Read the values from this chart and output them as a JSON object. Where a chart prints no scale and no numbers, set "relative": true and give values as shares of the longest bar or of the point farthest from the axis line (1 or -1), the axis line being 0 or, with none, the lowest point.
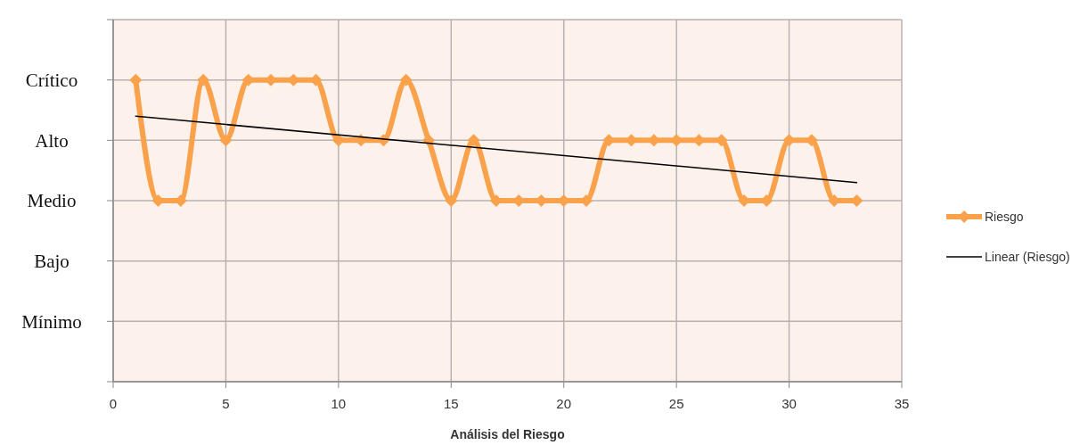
{
  "chart_data": {
    "type": "line",
    "xlabel": "Análisis del Riesgo",
    "relative": true,
    "x": [
      1,
      2,
      3,
      4,
      5,
      6,
      7,
      8,
      9,
      10,
      11,
      12,
      13,
      14,
      15,
      16,
      17,
      18,
      19,
      20,
      21,
      22,
      23,
      24,
      25,
      26,
      27,
      28,
      29,
      30,
      31,
      32,
      33
    ],
    "series": [
      {
        "name": "Riesgo",
        "color": "#f9a24b",
        "marker": "diamond",
        "values": [
          1,
          0.6,
          0.6,
          1,
          0.8,
          1,
          1,
          1,
          1,
          0.8,
          0.8,
          0.8,
          1,
          0.8,
          0.6,
          0.8,
          0.6,
          0.6,
          0.6,
          0.6,
          0.6,
          0.8,
          0.8,
          0.8,
          0.8,
          0.8,
          0.8,
          0.6,
          0.6,
          0.8,
          0.8,
          0.6,
          0.6
        ]
      },
      {
        "name": "Linear (Riesgo)",
        "type": "line",
        "color": "#000000",
        "marker": "none",
        "x": [
          1,
          33
        ],
        "values": [
          0.88,
          0.66
        ]
      }
    ],
    "annotations": [
      "Mínimo",
      "Bajo",
      "Medio",
      "Alto",
      "Crítico"
    ],
    "xlim": [
      0,
      35
    ],
    "xticks": [
      0,
      5,
      10,
      15,
      20,
      25,
      30,
      35
    ],
    "grid": true,
    "legend": "right"
  }
}
